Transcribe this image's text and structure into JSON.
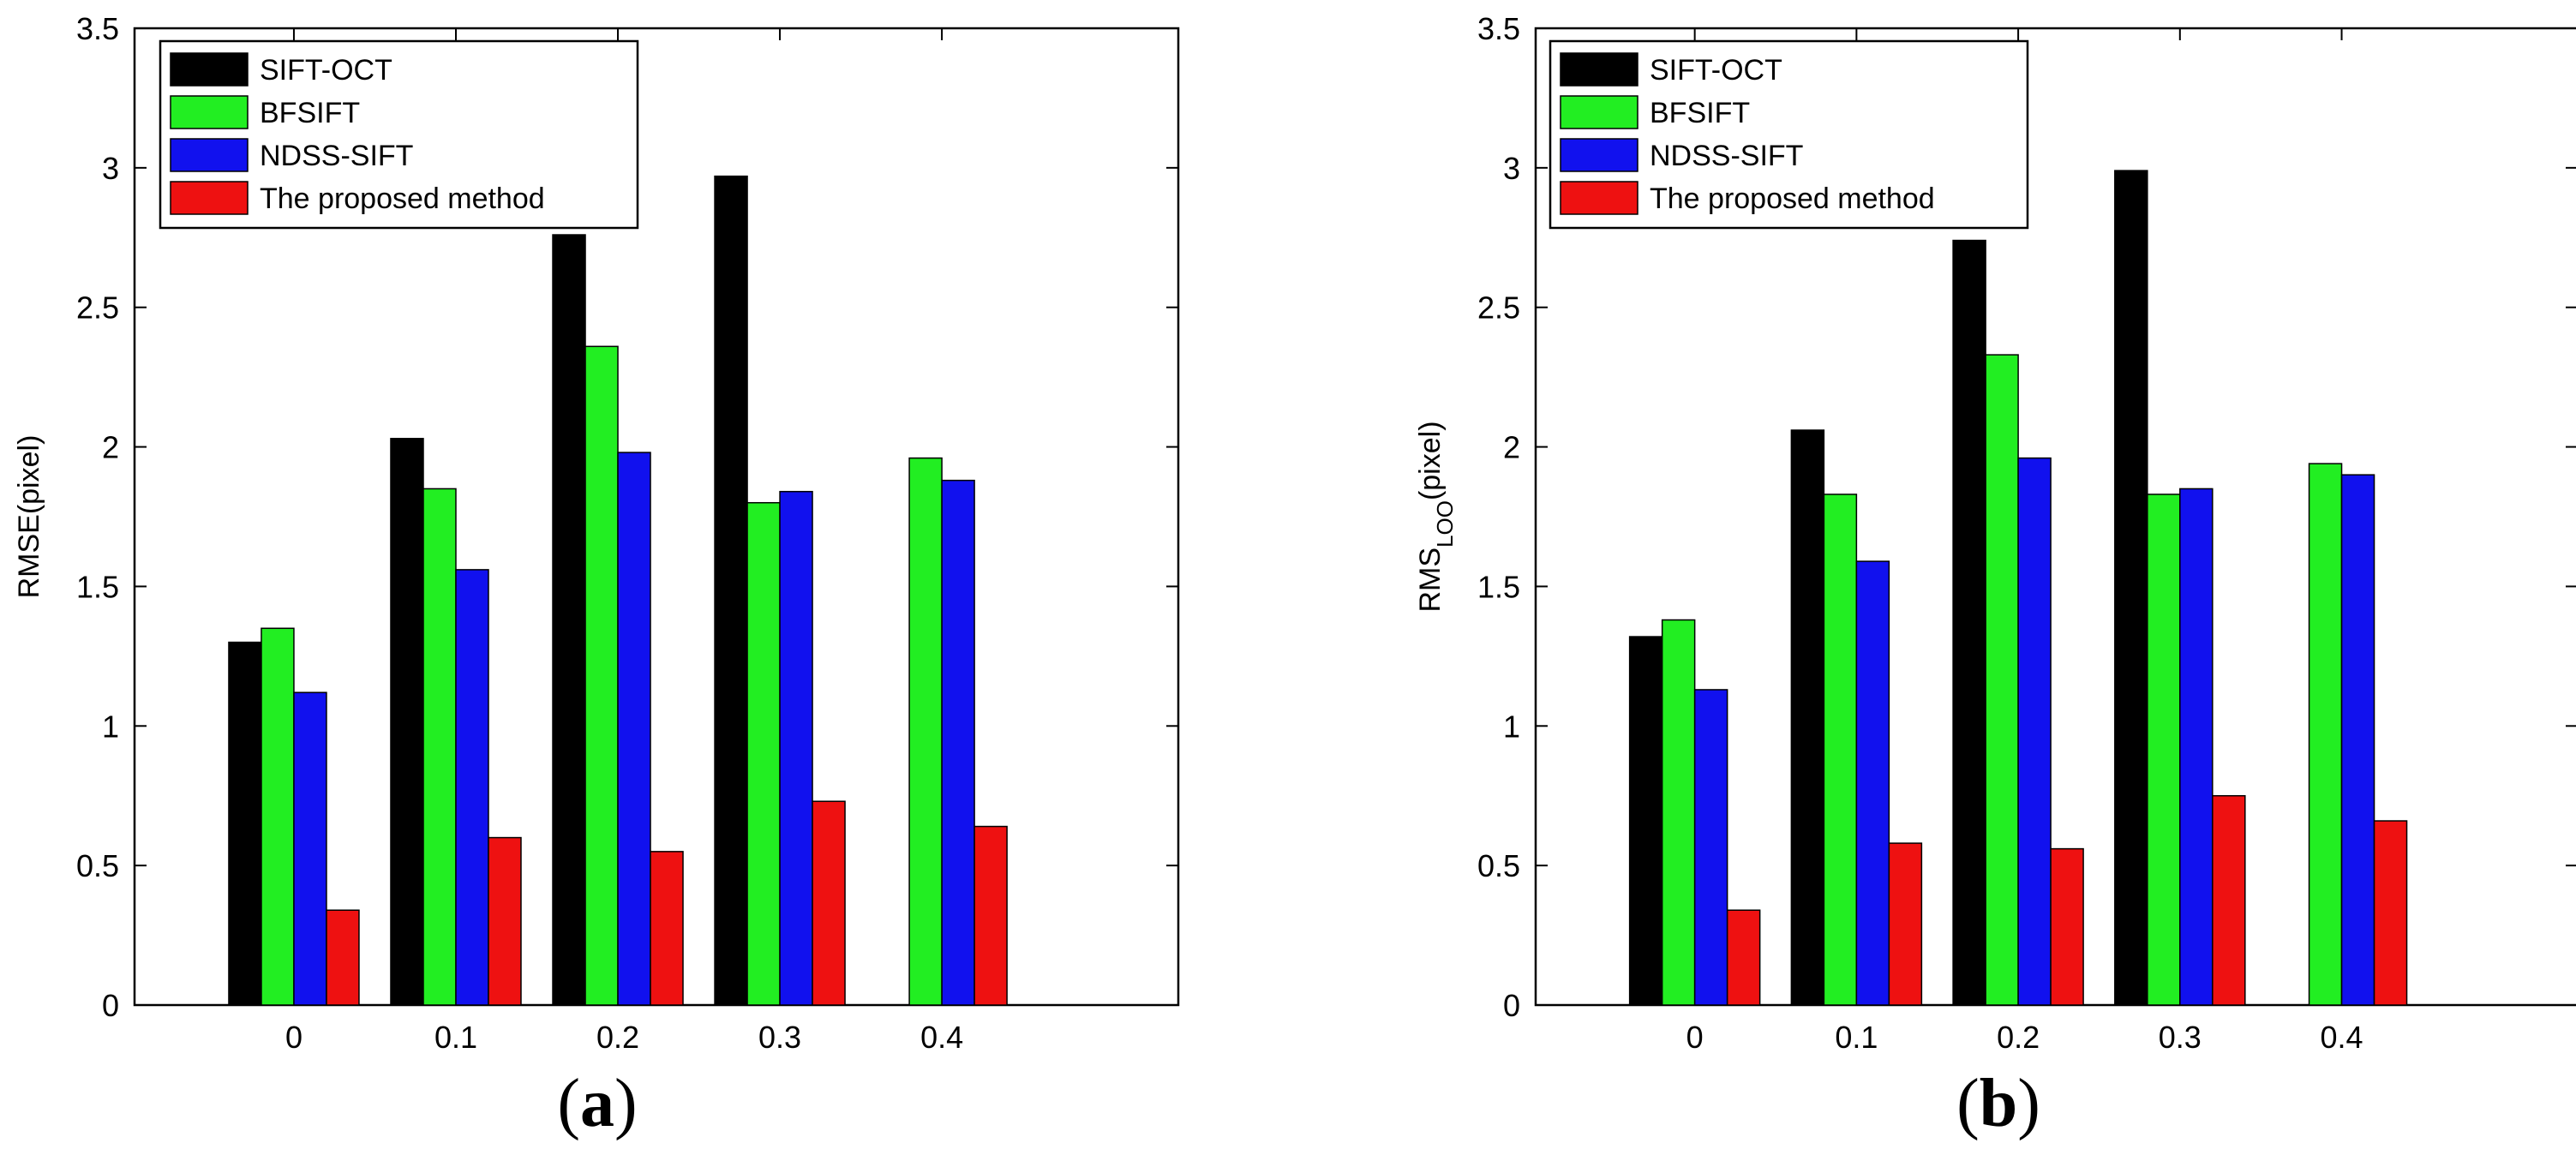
{
  "figure": {
    "captions": [
      "a",
      "b"
    ]
  },
  "colors": {
    "SIFT-OCT": "#000000",
    "BFSIFT": "#22ee22",
    "NDSS-SIFT": "#1111ee",
    "The proposed method": "#ee1111"
  },
  "chart_data": [
    {
      "type": "bar",
      "panel": "a",
      "ylabel": "RMSE(pixel)",
      "xlabel": "",
      "ylim": [
        0,
        3.5
      ],
      "yticks": [
        "0",
        "0.5",
        "1",
        "1.5",
        "2",
        "2.5",
        "3",
        "3.5"
      ],
      "categories": [
        "0",
        "0.1",
        "0.2",
        "0.3",
        "0.4"
      ],
      "legend_position": "top-left",
      "series": [
        {
          "name": "SIFT-OCT",
          "values": [
            1.3,
            2.03,
            2.76,
            2.97,
            null
          ]
        },
        {
          "name": "BFSIFT",
          "values": [
            1.35,
            1.85,
            2.36,
            1.8,
            1.96
          ]
        },
        {
          "name": "NDSS-SIFT",
          "values": [
            1.12,
            1.56,
            1.98,
            1.84,
            1.88
          ]
        },
        {
          "name": "The proposed method",
          "values": [
            0.34,
            0.6,
            0.55,
            0.73,
            0.64
          ]
        }
      ]
    },
    {
      "type": "bar",
      "panel": "b",
      "ylabel_main": "RMS",
      "ylabel_sub": "LOO",
      "ylabel_suffix": "(pixel)",
      "xlabel": "",
      "ylim": [
        0,
        3.5
      ],
      "yticks": [
        "0",
        "0.5",
        "1",
        "1.5",
        "2",
        "2.5",
        "3",
        "3.5"
      ],
      "categories": [
        "0",
        "0.1",
        "0.2",
        "0.3",
        "0.4"
      ],
      "legend_position": "top-left",
      "series": [
        {
          "name": "SIFT-OCT",
          "values": [
            1.32,
            2.06,
            2.74,
            2.99,
            null
          ]
        },
        {
          "name": "BFSIFT",
          "values": [
            1.38,
            1.83,
            2.33,
            1.83,
            1.94
          ]
        },
        {
          "name": "NDSS-SIFT",
          "values": [
            1.13,
            1.59,
            1.96,
            1.85,
            1.9
          ]
        },
        {
          "name": "The proposed method",
          "values": [
            0.34,
            0.58,
            0.56,
            0.75,
            0.66
          ]
        }
      ]
    }
  ]
}
